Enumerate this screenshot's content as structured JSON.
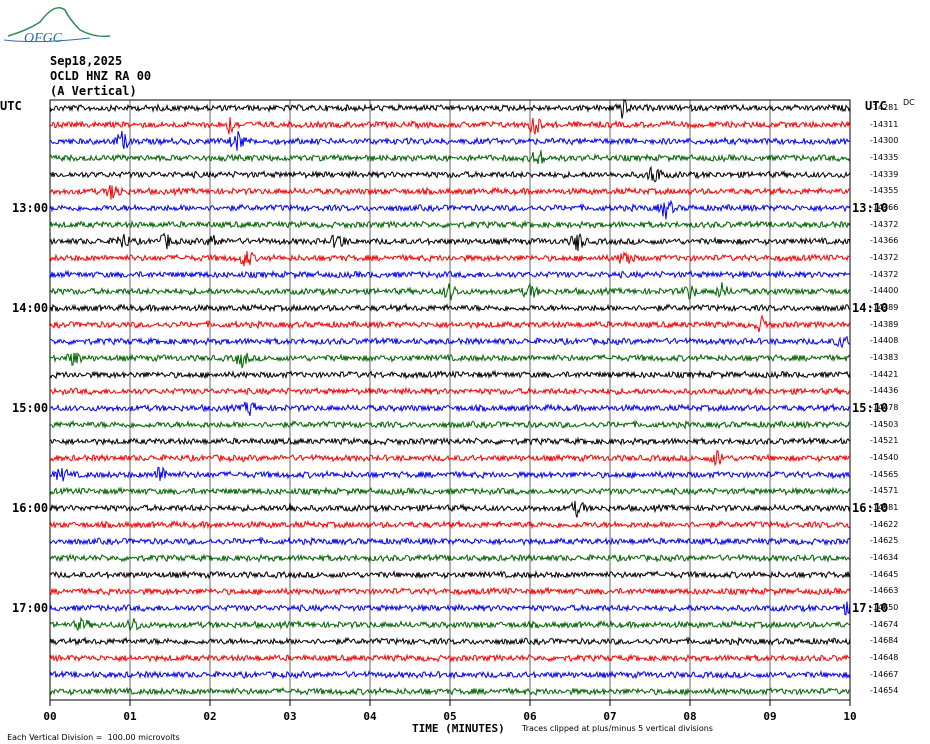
{
  "logo": {
    "text": "OFGC",
    "color": "#2a6fb3",
    "accent": "#2e8b57"
  },
  "header": {
    "date": "Sep18,2025",
    "station": "OCLD HNZ RA 00",
    "component": "(A Vertical)"
  },
  "utc_left": "UTC",
  "utc_right": "UTC",
  "corner_label": "DC",
  "time_labels_left": [
    "13:00",
    "14:00",
    "15:00",
    "16:00",
    "17:00"
  ],
  "time_labels_right": [
    "13:10",
    "14:10",
    "15:10",
    "16:10",
    "17:10"
  ],
  "trace_colors": [
    "#000000",
    "#ff0000",
    "#0000ff",
    "#006400"
  ],
  "right_values": [
    "-14281",
    "-14311",
    "-14300",
    "-14335",
    "-14339",
    "-14355",
    "-14366",
    "-14372",
    "-14366",
    "-14372",
    "-14372",
    "-14400",
    "-14389",
    "-14389",
    "-14408",
    "-14383",
    "-14421",
    "-14436",
    "-14478",
    "-14503",
    "-14521",
    "-14540",
    "-14565",
    "-14571",
    "-14581",
    "-14622",
    "-14625",
    "-14634",
    "-14645",
    "-14663",
    "-14650",
    "-14674",
    "-14684",
    "-14648",
    "-14667",
    "-14654"
  ],
  "x_ticks": [
    "00",
    "01",
    "02",
    "03",
    "04",
    "05",
    "06",
    "07",
    "08",
    "09",
    "10"
  ],
  "x_title": "TIME (MINUTES)",
  "footer_left": "Each Vertical Division =  100.00 microvolts",
  "footer_right": "Traces clipped at plus/minus 5 vertical divisions",
  "events": [
    [
      [
        7.15,
        1.0
      ]
    ],
    [
      [
        2.25,
        0.9
      ],
      [
        6.05,
        1.0
      ]
    ],
    [
      [
        0.9,
        0.9
      ],
      [
        2.35,
        1.0
      ]
    ],
    [
      [
        6.1,
        0.9
      ]
    ],
    [
      [
        7.55,
        1.0
      ]
    ],
    [
      [
        0.8,
        0.9
      ]
    ],
    [
      [
        7.7,
        1.0
      ]
    ],
    [],
    [
      [
        0.9,
        0.8
      ],
      [
        1.45,
        0.7
      ],
      [
        2.05,
        0.6
      ],
      [
        3.6,
        0.8
      ],
      [
        6.6,
        1.0
      ]
    ],
    [
      [
        2.45,
        0.9
      ],
      [
        7.2,
        0.9
      ]
    ],
    [],
    [
      [
        5.0,
        0.8
      ],
      [
        6.0,
        0.7
      ],
      [
        8.0,
        0.7
      ],
      [
        8.4,
        0.7
      ]
    ],
    [],
    [
      [
        8.9,
        0.7
      ]
    ],
    [
      [
        9.9,
        0.5
      ]
    ],
    [
      [
        0.3,
        0.7
      ],
      [
        2.4,
        0.8
      ]
    ],
    [],
    [],
    [
      [
        2.5,
        0.7
      ]
    ],
    [],
    [],
    [
      [
        8.35,
        0.8
      ]
    ],
    [
      [
        0.15,
        0.6
      ],
      [
        1.4,
        1.0
      ]
    ],
    [],
    [
      [
        3.0,
        0.4
      ],
      [
        6.6,
        0.8
      ]
    ],
    [],
    [],
    [],
    [],
    [],
    [
      [
        9.95,
        0.5
      ]
    ],
    [
      [
        0.4,
        0.5
      ],
      [
        1.05,
        0.7
      ]
    ],
    [],
    [],
    [],
    []
  ]
}
